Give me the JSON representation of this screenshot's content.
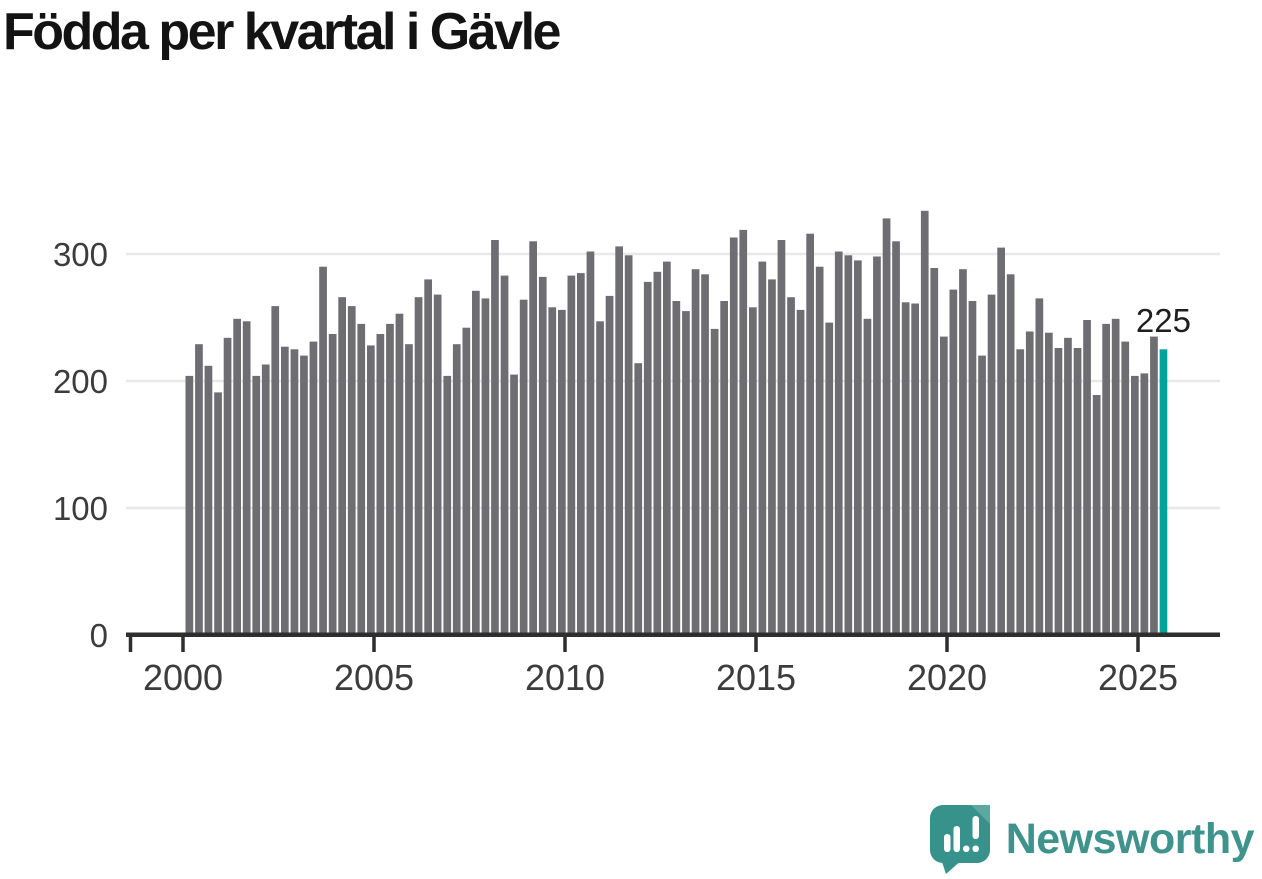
{
  "title": "Födda per kvartal i Gävle",
  "annotation": {
    "label": "225"
  },
  "brand": {
    "name": "Newsworthy"
  },
  "colors": {
    "bar": "#6e6d72",
    "highlight": "#00a49c",
    "axis": "#2e2e2e",
    "grid": "#e8e8e8",
    "tick_text": "#3c3c3c",
    "title_text": "#131313",
    "annotation_text": "#1f1f1f",
    "logo_bubble": "#37928c",
    "logo_bubble_fold": "#5fa8a2",
    "logo_mark": "#ffffff",
    "logo_text": "#3f938d"
  },
  "chart_data": {
    "type": "bar",
    "title": "Födda per kvartal i Gävle",
    "xlabel": "",
    "ylabel": "",
    "period": "quarterly",
    "start": "2000-Q1",
    "end": "2025-Q3",
    "ylim": [
      0,
      350
    ],
    "y_ticks": [
      0,
      100,
      200,
      300
    ],
    "x_ticks": [
      2000,
      2005,
      2010,
      2015,
      2020,
      2025
    ],
    "grid": "horizontal",
    "legend": "none",
    "highlight": {
      "index": 102,
      "quarter": "2025-Q3",
      "value": 225,
      "label": "225"
    },
    "values": [
      204,
      229,
      212,
      191,
      234,
      249,
      247,
      204,
      213,
      259,
      227,
      225,
      220,
      231,
      290,
      237,
      266,
      259,
      245,
      228,
      237,
      245,
      253,
      229,
      266,
      280,
      268,
      204,
      229,
      242,
      271,
      265,
      311,
      283,
      205,
      264,
      310,
      282,
      258,
      256,
      283,
      285,
      302,
      247,
      267,
      306,
      299,
      214,
      278,
      286,
      294,
      263,
      255,
      288,
      284,
      241,
      263,
      313,
      319,
      258,
      294,
      280,
      311,
      266,
      256,
      316,
      290,
      246,
      302,
      299,
      295,
      249,
      298,
      328,
      310,
      262,
      261,
      334,
      289,
      235,
      272,
      288,
      263,
      220,
      268,
      305,
      284,
      225,
      239,
      265,
      238,
      226,
      234,
      226,
      248,
      189,
      245,
      249,
      231,
      204,
      206,
      235,
      225
    ]
  }
}
